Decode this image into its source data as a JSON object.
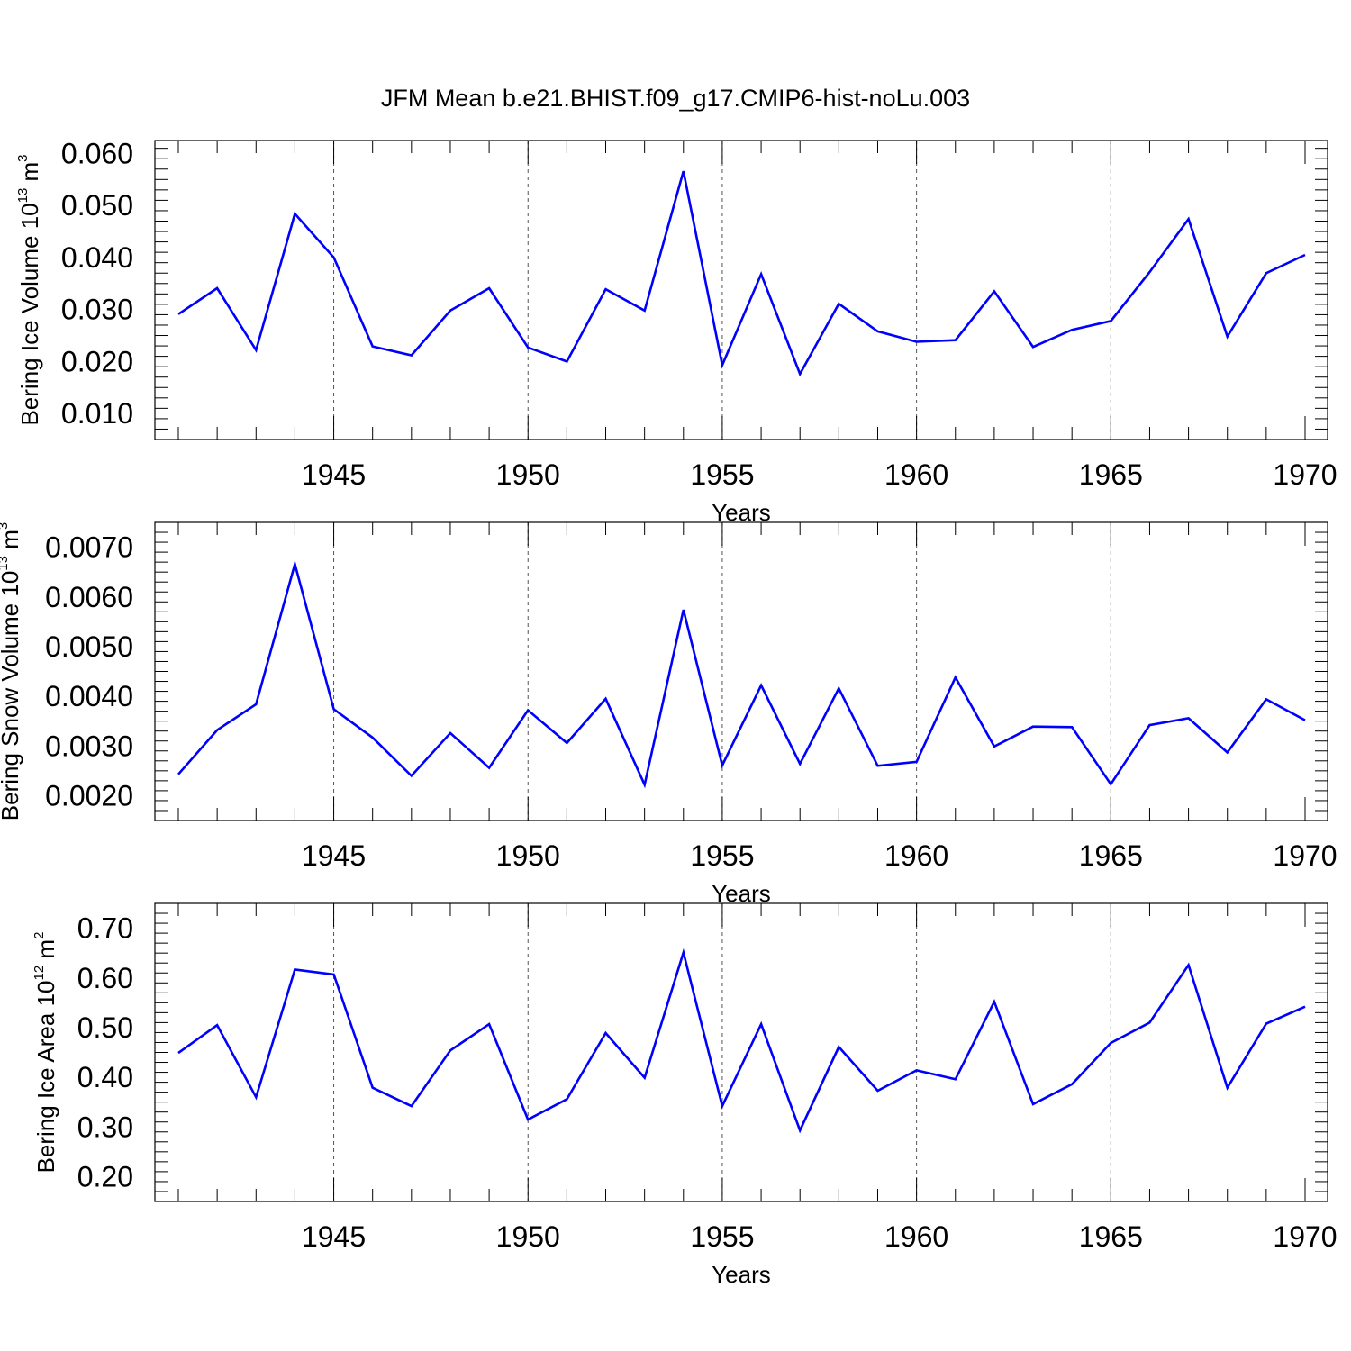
{
  "title": "JFM Mean b.e21.BHIST.f09_g17.CMIP6-hist-noLu.003",
  "colors": {
    "series": "#0000ff",
    "axis": "#000000",
    "grid": "#555555"
  },
  "chart_data": [
    {
      "type": "line",
      "ylabel": {
        "text": "Bering Ice Volume 10",
        "sup": "13",
        "unit": " m",
        "unit_sup": "3"
      },
      "xlabel": "Years",
      "xlim": [
        1941,
        1970
      ],
      "ylim": [
        0.005,
        0.0625
      ],
      "yticks": [
        0.01,
        0.02,
        0.03,
        0.04,
        0.05,
        0.06
      ],
      "ytick_labels": [
        "0.010",
        "0.020",
        "0.030",
        "0.040",
        "0.050",
        "0.060"
      ],
      "xticks": [
        1945,
        1950,
        1955,
        1960,
        1965,
        1970
      ],
      "xtick_labels": [
        "1945",
        "1950",
        "1955",
        "1960",
        "1965",
        "1970"
      ],
      "grid": "vertical dashed at major x ticks",
      "x": [
        1941,
        1942,
        1943,
        1944,
        1945,
        1946,
        1947,
        1948,
        1949,
        1950,
        1951,
        1952,
        1953,
        1954,
        1955,
        1956,
        1957,
        1958,
        1959,
        1960,
        1961,
        1962,
        1963,
        1964,
        1965,
        1966,
        1967,
        1968,
        1969,
        1970
      ],
      "values": [
        0.0291,
        0.0341,
        0.0222,
        0.0484,
        0.04,
        0.0229,
        0.0212,
        0.0298,
        0.0341,
        0.0227,
        0.02,
        0.0339,
        0.0298,
        0.0566,
        0.0193,
        0.0368,
        0.0176,
        0.0311,
        0.0258,
        0.0238,
        0.0241,
        0.0335,
        0.0228,
        0.0261,
        0.0278,
        0.0372,
        0.0474,
        0.0248,
        0.037,
        0.0405
      ]
    },
    {
      "type": "line",
      "ylabel": {
        "text": "Bering Snow Volume 10",
        "sup": "13",
        "unit": " m",
        "unit_sup": "3"
      },
      "xlabel": "Years",
      "xlim": [
        1941,
        1970
      ],
      "ylim": [
        0.0015,
        0.0075
      ],
      "yticks": [
        0.002,
        0.003,
        0.004,
        0.005,
        0.006,
        0.007
      ],
      "ytick_labels": [
        "0.0020",
        "0.0030",
        "0.0040",
        "0.0050",
        "0.0060",
        "0.0070"
      ],
      "xticks": [
        1945,
        1950,
        1955,
        1960,
        1965,
        1970
      ],
      "xtick_labels": [
        "1945",
        "1950",
        "1955",
        "1960",
        "1965",
        "1970"
      ],
      "grid": "vertical dashed at major x ticks",
      "x": [
        1941,
        1942,
        1943,
        1944,
        1945,
        1946,
        1947,
        1948,
        1949,
        1950,
        1951,
        1952,
        1953,
        1954,
        1955,
        1956,
        1957,
        1958,
        1959,
        1960,
        1961,
        1962,
        1963,
        1964,
        1965,
        1966,
        1967,
        1968,
        1969,
        1970
      ],
      "values": [
        0.00243,
        0.00332,
        0.00384,
        0.00666,
        0.00374,
        0.00317,
        0.0024,
        0.00326,
        0.00256,
        0.00372,
        0.00306,
        0.00395,
        0.00222,
        0.00574,
        0.00261,
        0.00422,
        0.00264,
        0.00416,
        0.0026,
        0.00268,
        0.00438,
        0.00299,
        0.00339,
        0.00338,
        0.00223,
        0.00342,
        0.00356,
        0.00287,
        0.00394,
        0.00352
      ]
    },
    {
      "type": "line",
      "ylabel": {
        "text": "Bering Ice Area 10",
        "sup": "12",
        "unit": " m",
        "unit_sup": "2"
      },
      "xlabel": "Years",
      "xlim": [
        1941,
        1970
      ],
      "ylim": [
        0.15,
        0.75
      ],
      "yticks": [
        0.2,
        0.3,
        0.4,
        0.5,
        0.6,
        0.7
      ],
      "ytick_labels": [
        "0.20",
        "0.30",
        "0.40",
        "0.50",
        "0.60",
        "0.70"
      ],
      "xticks": [
        1945,
        1950,
        1955,
        1960,
        1965,
        1970
      ],
      "xtick_labels": [
        "1945",
        "1950",
        "1955",
        "1960",
        "1965",
        "1970"
      ],
      "grid": "vertical dashed at major x ticks",
      "x": [
        1941,
        1942,
        1943,
        1944,
        1945,
        1946,
        1947,
        1948,
        1949,
        1950,
        1951,
        1952,
        1953,
        1954,
        1955,
        1956,
        1957,
        1958,
        1959,
        1960,
        1961,
        1962,
        1963,
        1964,
        1965,
        1966,
        1967,
        1968,
        1969,
        1970
      ],
      "values": [
        0.449,
        0.505,
        0.36,
        0.617,
        0.607,
        0.379,
        0.342,
        0.454,
        0.507,
        0.315,
        0.356,
        0.489,
        0.399,
        0.651,
        0.342,
        0.507,
        0.293,
        0.461,
        0.373,
        0.414,
        0.396,
        0.552,
        0.346,
        0.386,
        0.469,
        0.51,
        0.626,
        0.379,
        0.508,
        0.542
      ]
    }
  ]
}
